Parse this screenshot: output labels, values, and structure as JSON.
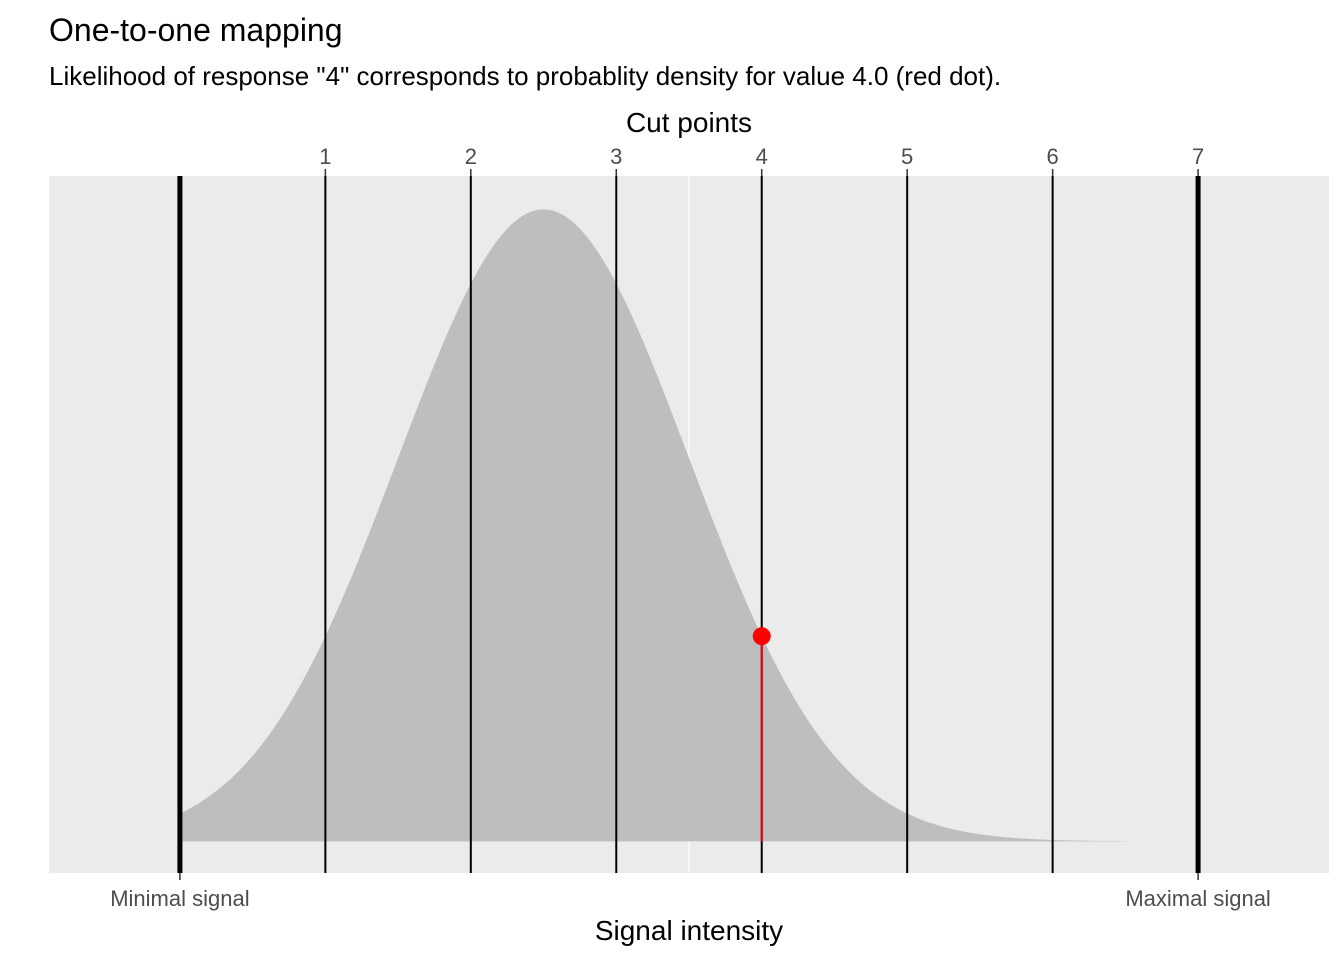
{
  "chart_data": {
    "type": "area",
    "title": "One-to-one mapping",
    "subtitle": "Likelihood of response \"4\" corresponds to probablity density for value 4.0 (red dot).",
    "xlabel": "Signal intensity",
    "top_axis_title": "Cut points",
    "xlim": [
      -0.9,
      7.9
    ],
    "ylim": [
      -0.02,
      0.42
    ],
    "grid": true,
    "bottom_ticks": [
      {
        "value": 0,
        "label": "Minimal signal"
      },
      {
        "value": 7,
        "label": "Maximal signal"
      }
    ],
    "cut_points": [
      1,
      2,
      3,
      4,
      5,
      6,
      7
    ],
    "cut_point_labels": [
      "1",
      "2",
      "3",
      "4",
      "5",
      "6",
      "7"
    ],
    "boundaries": [
      0,
      7
    ],
    "density": {
      "distribution": "normal",
      "mean": 2.5,
      "sd": 1.0,
      "x_range": [
        0,
        6.5
      ],
      "fill": "#bebebe"
    },
    "highlight": {
      "x": 4.0,
      "y": 0.1295,
      "label": "4",
      "color": "#ff0000"
    },
    "colors": {
      "panel": "#ebebeb",
      "grid": "#ffffff",
      "cut_line": "#000000"
    }
  }
}
